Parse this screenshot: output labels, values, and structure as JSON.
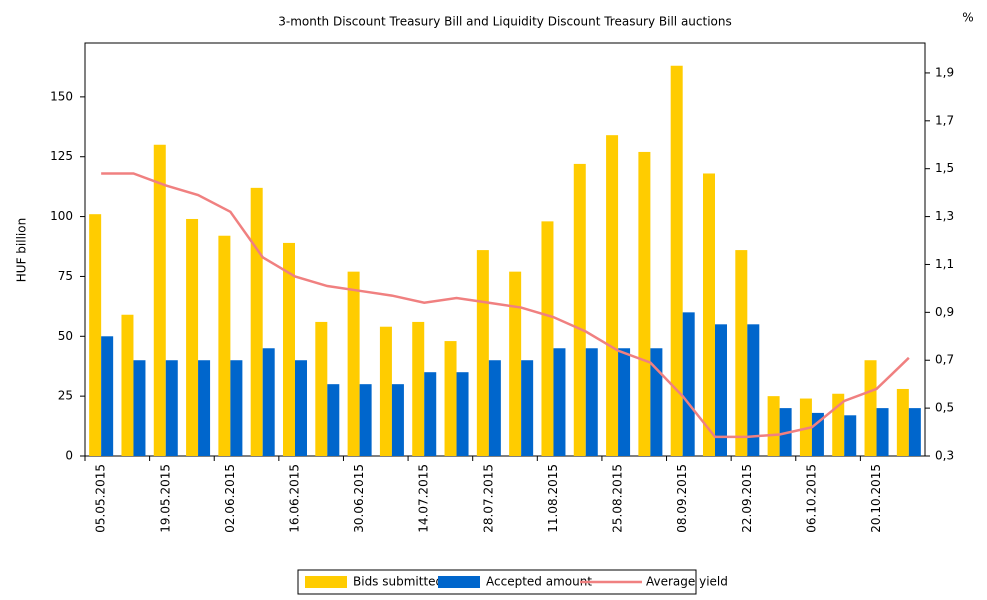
{
  "chart_data": {
    "type": "bar",
    "title": "3-month Discount Treasury Bill and Liquidity Discount Treasury Bill auctions",
    "y_label": "HUF billion",
    "y2_label": "%",
    "categories": [
      "05.05.2015",
      null,
      "19.05.2015",
      null,
      "02.06.2015",
      null,
      "16.06.2015",
      null,
      "30.06.2015",
      null,
      "14.07.2015",
      null,
      "28.07.2015",
      null,
      "11.08.2015",
      null,
      "25.08.2015",
      null,
      "08.09.2015",
      null,
      "22.09.2015",
      null,
      "06.10.2015",
      null,
      "20.10.2015",
      null
    ],
    "series": [
      {
        "name": "Bids submitted",
        "color": "#ffcc00",
        "type": "bar",
        "values": [
          101,
          59,
          130,
          99,
          92,
          112,
          89,
          56,
          77,
          54,
          56,
          48,
          86,
          77,
          98,
          122,
          134,
          127,
          163,
          118,
          86,
          25,
          24,
          26,
          40,
          28
        ]
      },
      {
        "name": "Accepted amount",
        "color": "#0066cc",
        "type": "bar",
        "values": [
          50,
          40,
          40,
          40,
          40,
          45,
          40,
          30,
          30,
          30,
          35,
          35,
          40,
          40,
          45,
          45,
          45,
          45,
          60,
          55,
          55,
          20,
          18,
          17,
          20,
          20
        ]
      },
      {
        "name": "Average yield",
        "color": "#f08080",
        "type": "line",
        "axis": "y2",
        "values": [
          1.48,
          1.48,
          1.43,
          1.39,
          1.32,
          1.13,
          1.05,
          1.01,
          0.99,
          0.97,
          0.94,
          0.96,
          0.94,
          0.92,
          0.88,
          0.82,
          0.74,
          0.69,
          0.55,
          0.38,
          0.38,
          0.39,
          0.42,
          0.53,
          0.58,
          0.71
        ]
      }
    ],
    "ylim": [
      0,
      172.5
    ],
    "yticks": [
      0,
      25,
      50,
      75,
      100,
      125,
      150
    ],
    "y2lim": [
      0.3,
      2.025
    ],
    "y2ticks": [
      {
        "value": 0.3,
        "label": "0,3"
      },
      {
        "value": 0.5,
        "label": "0,5"
      },
      {
        "value": 0.7,
        "label": "0,7"
      },
      {
        "value": 0.9,
        "label": "0,9"
      },
      {
        "value": 1.1,
        "label": "1,1"
      },
      {
        "value": 1.3,
        "label": "1,3"
      },
      {
        "value": 1.5,
        "label": "1,5"
      },
      {
        "value": 1.7,
        "label": "1,7"
      },
      {
        "value": 1.9,
        "label": "1,9"
      }
    ],
    "legend": "bottom"
  }
}
